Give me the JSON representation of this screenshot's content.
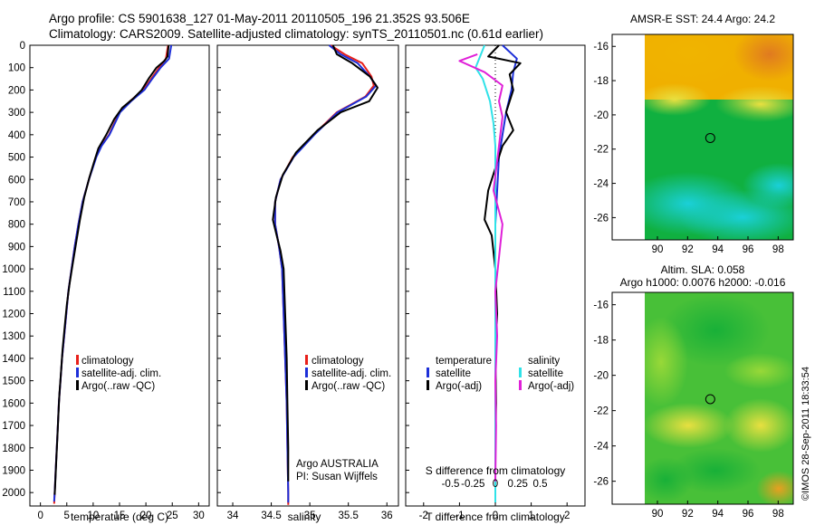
{
  "header": {
    "line1": "Argo profile: CS 5901638_127 01-May-2011 20110505_196 21.352S 93.506E",
    "line2": "Climatology: CARS2009. Satellite-adjusted climatology: synTS_20110501.nc (0.61d earlier)"
  },
  "colors": {
    "climatology": "#e8201a",
    "satellite": "#1d2fd8",
    "argo": "#000000",
    "sat_diff_s": "#2fe2e8",
    "argo_diff_s": "#e020d8"
  },
  "depth_axis": {
    "min": 0,
    "max": 2060,
    "ticks": [
      "0",
      "100",
      "200",
      "300",
      "400",
      "500",
      "600",
      "700",
      "800",
      "900",
      "1000",
      "1100",
      "1200",
      "1300",
      "1400",
      "1500",
      "1600",
      "1700",
      "1800",
      "1900",
      "2000"
    ]
  },
  "chart_data": [
    {
      "type": "line",
      "xlabel": "temperature (deg C)",
      "xlim": [
        -2,
        32
      ],
      "xticks": [
        "0",
        "5",
        "10",
        "15",
        "20",
        "25",
        "30"
      ],
      "ylim": [
        0,
        2060
      ],
      "y_reversed": true,
      "legend": [
        "climatology",
        "satellite-adj. clim.",
        "Argo(..raw -QC)"
      ],
      "series": [
        {
          "name": "climatology",
          "points": [
            [
              24.2,
              0
            ],
            [
              23.8,
              60
            ],
            [
              22.5,
              100
            ],
            [
              21,
              150
            ],
            [
              19.5,
              200
            ],
            [
              17,
              250
            ],
            [
              15,
              300
            ],
            [
              13,
              400
            ],
            [
              11.5,
              450
            ],
            [
              10.5,
              500
            ],
            [
              9.2,
              600
            ],
            [
              8,
              700
            ],
            [
              7.2,
              800
            ],
            [
              6.5,
              900
            ],
            [
              5.9,
              1000
            ],
            [
              5.3,
              1100
            ],
            [
              4.9,
              1200
            ],
            [
              4.5,
              1300
            ],
            [
              4.1,
              1400
            ],
            [
              3.8,
              1500
            ],
            [
              3.5,
              1600
            ],
            [
              3.3,
              1700
            ],
            [
              3.1,
              1800
            ],
            [
              2.9,
              1900
            ],
            [
              2.7,
              2000
            ],
            [
              2.6,
              2050
            ]
          ]
        },
        {
          "name": "satellite-adj. clim.",
          "points": [
            [
              24.8,
              0
            ],
            [
              24.4,
              60
            ],
            [
              22.8,
              100
            ],
            [
              21.2,
              150
            ],
            [
              19.7,
              200
            ],
            [
              17.2,
              250
            ],
            [
              15.1,
              300
            ],
            [
              13.1,
              400
            ],
            [
              11.6,
              450
            ],
            [
              10.6,
              500
            ],
            [
              9.2,
              600
            ],
            [
              8,
              700
            ],
            [
              7.2,
              800
            ],
            [
              6.5,
              900
            ],
            [
              5.9,
              1000
            ],
            [
              5.3,
              1100
            ],
            [
              4.9,
              1200
            ],
            [
              4.5,
              1300
            ],
            [
              4.1,
              1400
            ],
            [
              3.8,
              1500
            ],
            [
              3.5,
              1600
            ],
            [
              3.3,
              1700
            ],
            [
              3.1,
              1800
            ],
            [
              2.9,
              1900
            ],
            [
              2.7,
              2000
            ],
            [
              2.6,
              2040
            ]
          ]
        },
        {
          "name": "Argo(..raw -QC)",
          "points": [
            [
              24.3,
              0
            ],
            [
              24.1,
              50
            ],
            [
              23.5,
              70
            ],
            [
              22,
              100
            ],
            [
              20.5,
              150
            ],
            [
              19.2,
              200
            ],
            [
              17.5,
              240
            ],
            [
              15.5,
              280
            ],
            [
              14,
              330
            ],
            [
              12.5,
              400
            ],
            [
              11,
              460
            ],
            [
              10.2,
              520
            ],
            [
              9.3,
              590
            ],
            [
              8.3,
              680
            ],
            [
              7.5,
              780
            ],
            [
              6.8,
              880
            ],
            [
              6.1,
              980
            ],
            [
              5.5,
              1070
            ],
            [
              5,
              1160
            ],
            [
              4.6,
              1260
            ],
            [
              4.2,
              1360
            ],
            [
              3.9,
              1460
            ],
            [
              3.6,
              1560
            ],
            [
              3.4,
              1660
            ],
            [
              3.2,
              1760
            ],
            [
              3,
              1860
            ],
            [
              2.8,
              1960
            ],
            [
              2.7,
              2010
            ]
          ]
        }
      ]
    },
    {
      "type": "line",
      "xlabel": "salinity",
      "xlim": [
        33.8,
        36.15
      ],
      "xticks": [
        "34",
        "34.5",
        "35",
        "35.5",
        "36"
      ],
      "ylim": [
        0,
        2060
      ],
      "y_reversed": true,
      "legend": [
        "climatology",
        "satellite-adj. clim.",
        "Argo(..raw -QC)"
      ],
      "annotation": [
        "Argo AUSTRALIA",
        "PI: Susan Wijffels"
      ],
      "series": [
        {
          "name": "climatology",
          "points": [
            [
              35.27,
              0
            ],
            [
              35.45,
              40
            ],
            [
              35.68,
              80
            ],
            [
              35.8,
              140
            ],
            [
              35.83,
              180
            ],
            [
              35.72,
              230
            ],
            [
              35.35,
              300
            ],
            [
              35.05,
              400
            ],
            [
              34.78,
              500
            ],
            [
              34.62,
              600
            ],
            [
              34.55,
              700
            ],
            [
              34.55,
              800
            ],
            [
              34.6,
              900
            ],
            [
              34.64,
              1000
            ],
            [
              34.66,
              1200
            ],
            [
              34.68,
              1400
            ],
            [
              34.7,
              1600
            ],
            [
              34.71,
              1800
            ],
            [
              34.72,
              2000
            ],
            [
              34.72,
              2055
            ]
          ]
        },
        {
          "name": "satellite-adj. clim.",
          "points": [
            [
              35.25,
              0
            ],
            [
              35.4,
              40
            ],
            [
              35.62,
              80
            ],
            [
              35.78,
              140
            ],
            [
              35.86,
              180
            ],
            [
              35.73,
              230
            ],
            [
              35.36,
              300
            ],
            [
              35.06,
              400
            ],
            [
              34.79,
              500
            ],
            [
              34.62,
              600
            ],
            [
              34.55,
              700
            ],
            [
              34.55,
              800
            ],
            [
              34.6,
              900
            ],
            [
              34.64,
              1000
            ],
            [
              34.66,
              1200
            ],
            [
              34.68,
              1400
            ],
            [
              34.7,
              1600
            ],
            [
              34.71,
              1800
            ],
            [
              34.72,
              2000
            ],
            [
              34.72,
              2045
            ]
          ]
        },
        {
          "name": "Argo(..raw -QC)",
          "points": [
            [
              35.3,
              0
            ],
            [
              35.35,
              40
            ],
            [
              35.55,
              80
            ],
            [
              35.78,
              140
            ],
            [
              35.88,
              190
            ],
            [
              35.77,
              250
            ],
            [
              35.4,
              300
            ],
            [
              35.1,
              380
            ],
            [
              34.82,
              480
            ],
            [
              34.65,
              580
            ],
            [
              34.56,
              680
            ],
            [
              34.52,
              780
            ],
            [
              34.57,
              850
            ],
            [
              34.62,
              920
            ],
            [
              34.66,
              1000
            ],
            [
              34.68,
              1200
            ],
            [
              34.7,
              1400
            ],
            [
              34.71,
              1600
            ],
            [
              34.72,
              1800
            ],
            [
              34.72,
              1950
            ]
          ]
        }
      ]
    },
    {
      "type": "line",
      "xlabel": "T difference from climatology",
      "xlabel_top": "S difference from climatology",
      "xlim": [
        -2.5,
        2.5
      ],
      "xticks_T": [
        "-2",
        "-1",
        "0",
        "1",
        "2"
      ],
      "xticks_S": [
        "-0.5",
        "-0.25",
        "0",
        "0.25",
        "0.5"
      ],
      "ylim": [
        0,
        2060
      ],
      "y_reversed": true,
      "legend_titles": [
        "temperature",
        "salinity"
      ],
      "legend_temperature": [
        "satellite",
        "Argo(-adj)"
      ],
      "legend_salinity": [
        "satellite",
        "Argo(-adj)"
      ],
      "series": [
        {
          "name": "satellite",
          "variable": "temperature",
          "points": [
            [
              0.2,
              0
            ],
            [
              0.6,
              60
            ],
            [
              0.5,
              120
            ],
            [
              0.45,
              200
            ],
            [
              0.3,
              300
            ],
            [
              0.2,
              400
            ],
            [
              0.1,
              500
            ],
            [
              0.05,
              650
            ],
            [
              0,
              800
            ],
            [
              0,
              2040
            ]
          ]
        },
        {
          "name": "Argo(-adj)",
          "variable": "temperature",
          "points": [
            [
              0.1,
              0
            ],
            [
              -0.2,
              50
            ],
            [
              0.7,
              80
            ],
            [
              0.4,
              130
            ],
            [
              0.5,
              200
            ],
            [
              0.3,
              300
            ],
            [
              0.5,
              380
            ],
            [
              0.2,
              450
            ],
            [
              -0.2,
              650
            ],
            [
              -0.3,
              780
            ],
            [
              -0.1,
              850
            ],
            [
              0,
              1000
            ],
            [
              0.05,
              1200
            ],
            [
              0,
              1400
            ],
            [
              0.02,
              1600
            ],
            [
              0,
              1800
            ],
            [
              0,
              1950
            ]
          ]
        },
        {
          "name": "satellite",
          "variable": "salinity",
          "points": [
            [
              -0.3,
              0
            ],
            [
              -0.55,
              100
            ],
            [
              -0.35,
              150
            ],
            [
              -0.15,
              250
            ],
            [
              -0.05,
              350
            ],
            [
              0,
              450
            ],
            [
              0,
              2045
            ]
          ]
        },
        {
          "name": "Argo(-adj)",
          "variable": "salinity",
          "points": [
            [
              -0.5,
              40
            ],
            [
              -1,
              70
            ],
            [
              -0.3,
              120
            ],
            [
              0.2,
              180
            ],
            [
              0.1,
              250
            ],
            [
              0.2,
              320
            ],
            [
              0.1,
              450
            ],
            [
              -0.05,
              650
            ],
            [
              0.2,
              800
            ],
            [
              0.1,
              950
            ],
            [
              0,
              1100
            ],
            [
              0.05,
              1300
            ],
            [
              0,
              1500
            ],
            [
              0.02,
              1700
            ],
            [
              0,
              1950
            ]
          ]
        }
      ]
    },
    {
      "type": "heatmap",
      "title": "AMSR-E SST: 24.4  Argo: 24.2",
      "xticks": [
        "90",
        "92",
        "94",
        "96",
        "98"
      ],
      "yticks": [
        "-16",
        "-18",
        "-20",
        "-22",
        "-24",
        "-26"
      ],
      "xlim": [
        87,
        99
      ],
      "ylim": [
        -27.3,
        -15.3
      ],
      "marker": {
        "lon": 93.5,
        "lat": -21.35
      }
    },
    {
      "type": "heatmap",
      "title_line1": "Altim. SLA: 0.058",
      "title_line2": "Argo h1000: 0.0076 h2000: -0.016",
      "xticks": [
        "90",
        "92",
        "94",
        "96",
        "98"
      ],
      "yticks": [
        "-16",
        "-18",
        "-20",
        "-22",
        "-24",
        "-26"
      ],
      "xlim": [
        87,
        99
      ],
      "ylim": [
        -27.3,
        -15.3
      ],
      "marker": {
        "lon": 93.5,
        "lat": -21.35
      }
    }
  ],
  "footer_vertical": "©IMOS 28-Sep-2011 18:33:54"
}
